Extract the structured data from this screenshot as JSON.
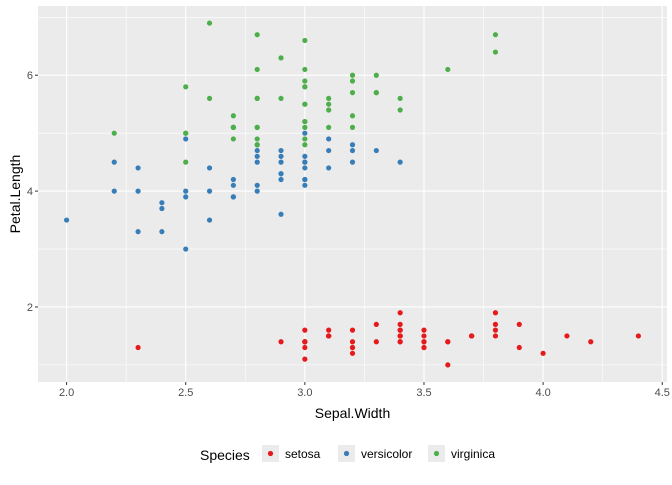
{
  "chart_data": {
    "type": "scatter",
    "title": "",
    "xlabel": "Sepal.Width",
    "ylabel": "Petal.Length",
    "xlim": [
      1.88,
      4.52
    ],
    "ylim": [
      0.705,
      7.195
    ],
    "x_ticks": [
      2.0,
      2.5,
      3.0,
      3.5,
      4.0,
      4.5
    ],
    "x_tick_labels": [
      "2.0",
      "2.5",
      "3.0",
      "3.5",
      "4.0",
      "4.5"
    ],
    "y_ticks": [
      2,
      4,
      6
    ],
    "y_tick_labels": [
      "2",
      "4",
      "6"
    ],
    "grid": true,
    "panel_background": "#EBEBEB",
    "grid_color": "#FFFFFF",
    "legend": {
      "title": "Species",
      "position": "bottom"
    },
    "series": [
      {
        "name": "setosa",
        "color": "#E41A1C",
        "points": [
          [
            3.5,
            1.4
          ],
          [
            3.0,
            1.4
          ],
          [
            3.2,
            1.3
          ],
          [
            3.1,
            1.5
          ],
          [
            3.6,
            1.4
          ],
          [
            3.9,
            1.7
          ],
          [
            3.4,
            1.4
          ],
          [
            3.4,
            1.5
          ],
          [
            2.9,
            1.4
          ],
          [
            3.1,
            1.5
          ],
          [
            3.7,
            1.5
          ],
          [
            3.4,
            1.6
          ],
          [
            3.0,
            1.4
          ],
          [
            3.0,
            1.1
          ],
          [
            4.0,
            1.2
          ],
          [
            4.4,
            1.5
          ],
          [
            3.9,
            1.3
          ],
          [
            3.5,
            1.4
          ],
          [
            3.8,
            1.7
          ],
          [
            3.8,
            1.5
          ],
          [
            3.4,
            1.7
          ],
          [
            3.7,
            1.5
          ],
          [
            3.6,
            1.0
          ],
          [
            3.3,
            1.7
          ],
          [
            3.4,
            1.9
          ],
          [
            3.0,
            1.6
          ],
          [
            3.4,
            1.6
          ],
          [
            3.5,
            1.5
          ],
          [
            3.4,
            1.4
          ],
          [
            3.2,
            1.6
          ],
          [
            3.1,
            1.6
          ],
          [
            3.4,
            1.5
          ],
          [
            4.1,
            1.5
          ],
          [
            4.2,
            1.4
          ],
          [
            3.1,
            1.5
          ],
          [
            3.2,
            1.2
          ],
          [
            3.5,
            1.3
          ],
          [
            3.6,
            1.4
          ],
          [
            3.0,
            1.3
          ],
          [
            3.4,
            1.5
          ],
          [
            3.5,
            1.3
          ],
          [
            2.3,
            1.3
          ],
          [
            3.2,
            1.3
          ],
          [
            3.5,
            1.6
          ],
          [
            3.8,
            1.9
          ],
          [
            3.0,
            1.4
          ],
          [
            3.8,
            1.6
          ],
          [
            3.2,
            1.4
          ],
          [
            3.7,
            1.5
          ],
          [
            3.3,
            1.4
          ]
        ]
      },
      {
        "name": "versicolor",
        "color": "#377EB8",
        "points": [
          [
            3.2,
            4.7
          ],
          [
            3.2,
            4.5
          ],
          [
            3.1,
            4.9
          ],
          [
            2.3,
            4.0
          ],
          [
            2.8,
            4.6
          ],
          [
            2.8,
            4.5
          ],
          [
            3.3,
            4.7
          ],
          [
            2.4,
            3.3
          ],
          [
            2.9,
            4.6
          ],
          [
            2.7,
            3.9
          ],
          [
            2.0,
            3.5
          ],
          [
            3.0,
            4.2
          ],
          [
            2.2,
            4.0
          ],
          [
            2.9,
            4.7
          ],
          [
            2.9,
            3.6
          ],
          [
            3.1,
            4.4
          ],
          [
            3.0,
            4.5
          ],
          [
            2.7,
            4.1
          ],
          [
            2.2,
            4.5
          ],
          [
            2.5,
            3.9
          ],
          [
            3.2,
            4.8
          ],
          [
            2.8,
            4.0
          ],
          [
            2.5,
            4.9
          ],
          [
            2.8,
            4.7
          ],
          [
            2.9,
            4.3
          ],
          [
            3.0,
            4.4
          ],
          [
            2.8,
            4.8
          ],
          [
            3.0,
            5.0
          ],
          [
            2.9,
            4.5
          ],
          [
            2.6,
            3.5
          ],
          [
            2.4,
            3.8
          ],
          [
            2.4,
            3.7
          ],
          [
            2.7,
            3.9
          ],
          [
            2.7,
            5.1
          ],
          [
            3.0,
            4.5
          ],
          [
            3.4,
            4.5
          ],
          [
            3.1,
            4.7
          ],
          [
            2.3,
            4.4
          ],
          [
            3.0,
            4.1
          ],
          [
            2.5,
            4.0
          ],
          [
            2.6,
            4.4
          ],
          [
            3.0,
            4.6
          ],
          [
            2.6,
            4.0
          ],
          [
            2.3,
            3.3
          ],
          [
            2.7,
            4.2
          ],
          [
            3.0,
            4.2
          ],
          [
            2.9,
            4.2
          ],
          [
            2.9,
            4.3
          ],
          [
            2.5,
            3.0
          ],
          [
            2.8,
            4.1
          ]
        ]
      },
      {
        "name": "virginica",
        "color": "#4DAF4A",
        "points": [
          [
            3.3,
            6.0
          ],
          [
            2.7,
            5.1
          ],
          [
            3.0,
            5.9
          ],
          [
            2.9,
            5.6
          ],
          [
            3.0,
            5.8
          ],
          [
            3.0,
            6.6
          ],
          [
            2.5,
            4.5
          ],
          [
            2.9,
            6.3
          ],
          [
            2.5,
            5.8
          ],
          [
            3.6,
            6.1
          ],
          [
            3.2,
            5.1
          ],
          [
            2.7,
            5.3
          ],
          [
            3.0,
            5.5
          ],
          [
            2.5,
            5.0
          ],
          [
            2.8,
            5.1
          ],
          [
            3.2,
            5.3
          ],
          [
            3.0,
            5.5
          ],
          [
            3.8,
            6.7
          ],
          [
            2.6,
            6.9
          ],
          [
            2.2,
            5.0
          ],
          [
            3.2,
            5.7
          ],
          [
            2.8,
            4.9
          ],
          [
            2.8,
            6.7
          ],
          [
            2.7,
            4.9
          ],
          [
            3.3,
            5.7
          ],
          [
            3.2,
            6.0
          ],
          [
            2.8,
            4.8
          ],
          [
            3.0,
            4.9
          ],
          [
            2.8,
            5.6
          ],
          [
            3.0,
            5.8
          ],
          [
            2.8,
            6.1
          ],
          [
            3.8,
            6.4
          ],
          [
            2.8,
            5.6
          ],
          [
            2.8,
            5.1
          ],
          [
            2.6,
            5.6
          ],
          [
            3.0,
            6.1
          ],
          [
            3.4,
            5.6
          ],
          [
            3.1,
            5.5
          ],
          [
            3.0,
            4.8
          ],
          [
            3.1,
            5.4
          ],
          [
            3.1,
            5.6
          ],
          [
            3.1,
            5.1
          ],
          [
            2.7,
            5.1
          ],
          [
            3.2,
            5.9
          ],
          [
            3.3,
            5.7
          ],
          [
            3.0,
            5.2
          ],
          [
            2.5,
            5.0
          ],
          [
            3.0,
            5.2
          ],
          [
            3.4,
            5.4
          ],
          [
            3.0,
            5.1
          ]
        ]
      }
    ]
  }
}
